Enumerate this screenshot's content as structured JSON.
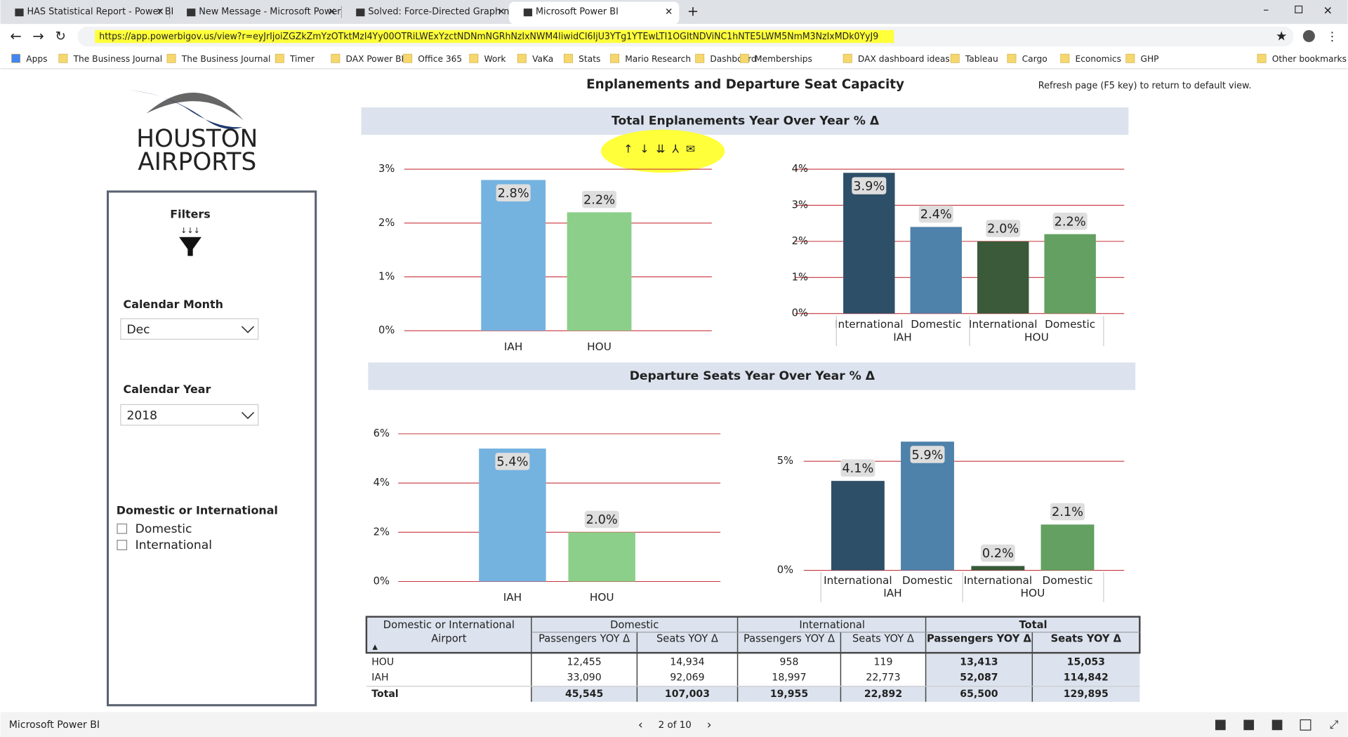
{
  "browser": {
    "tabs": [
      "HAS Statistical Report - Power BI",
      "New Message - Microsoft Power",
      "Solved: Force-Directed Graph no",
      "Microsoft Power BI"
    ],
    "url": "https://app.powerbigov.us/view?r=eyJrIjoiZGZkZmYzOTktMzI4Yy00OTRiLWExYzctNDNmNGRhNzIxNWM4IiwidCI6IjU3YTg1YTEwLTI1OGItNDViNC1hNTE5LWM5NmM3NzIxMDk0YyJ9",
    "bookmarks": [
      "Apps",
      "The Business Journal",
      "The Business Journal",
      "Timer",
      "DAX Power BI",
      "Office 365",
      "Work",
      "VaKa",
      "Stats",
      "Mario Research",
      "Dashboard",
      "Memberships",
      "DAX dashboard ideas",
      "Tableau",
      "Cargo",
      "Economics",
      "GHP",
      "Other bookmarks"
    ]
  },
  "report": {
    "title": "Enplanements and Departure Seat Capacity",
    "note": "Refresh page (F5 key) to return to default view.",
    "logo": [
      "HOUSTON",
      "AIRPORTS"
    ],
    "filters": {
      "title": "Filters",
      "month_label": "Calendar Month",
      "month": "Dec",
      "year_label": "Calendar Year",
      "year": "2018",
      "type_label": "Domestic or International",
      "options": [
        "Domestic",
        "International"
      ]
    },
    "sections": [
      "Total Enplanements Year Over Year % Δ",
      "Departure Seats Year Over Year % Δ"
    ]
  },
  "chart_data": [
    {
      "type": "bar",
      "categories": [
        "IAH",
        "HOU"
      ],
      "values": [
        2.8,
        2.2
      ],
      "value_labels": [
        "2.8%",
        "2.2%"
      ],
      "colors": [
        "#74b2e0",
        "#8ccf8a"
      ],
      "ylim": [
        0,
        3
      ],
      "yticks": [
        {
          "value": 0,
          "label": "0%"
        },
        {
          "value": 1,
          "label": "1%"
        },
        {
          "value": 2,
          "label": "2%"
        },
        {
          "value": 3,
          "label": "3%"
        }
      ],
      "grid": true
    },
    {
      "type": "bar",
      "categories": [
        "International",
        "Domestic",
        "International",
        "Domestic"
      ],
      "groups": [
        "IAH",
        "HOU"
      ],
      "values": [
        3.9,
        2.4,
        2.0,
        2.2
      ],
      "value_labels": [
        "3.9%",
        "2.4%",
        "2.0%",
        "2.2%"
      ],
      "colors": [
        "#2e4f68",
        "#4f82aa",
        "#3a5a3a",
        "#63a062"
      ],
      "ylim": [
        0,
        4
      ],
      "yticks": [
        {
          "value": 0,
          "label": "0%"
        },
        {
          "value": 1,
          "label": "1%"
        },
        {
          "value": 2,
          "label": "2%"
        },
        {
          "value": 3,
          "label": "3%"
        },
        {
          "value": 4,
          "label": "4%"
        }
      ],
      "grid": true
    },
    {
      "type": "bar",
      "categories": [
        "IAH",
        "HOU"
      ],
      "values": [
        5.4,
        2.0
      ],
      "value_labels": [
        "5.4%",
        "2.0%"
      ],
      "colors": [
        "#74b2e0",
        "#8ccf8a"
      ],
      "ylim": [
        0,
        6
      ],
      "yticks": [
        {
          "value": 0,
          "label": "0%"
        },
        {
          "value": 2,
          "label": "2%"
        },
        {
          "value": 4,
          "label": "4%"
        },
        {
          "value": 6,
          "label": "6%"
        }
      ],
      "grid": true
    },
    {
      "type": "bar",
      "categories": [
        "International",
        "Domestic",
        "International",
        "Domestic"
      ],
      "groups": [
        "IAH",
        "HOU"
      ],
      "values": [
        4.1,
        5.9,
        0.2,
        2.1
      ],
      "value_labels": [
        "4.1%",
        "5.9%",
        "0.2%",
        "2.1%"
      ],
      "colors": [
        "#2e4f68",
        "#4f82aa",
        "#3a5a3a",
        "#63a062"
      ],
      "ylim": [
        0,
        6
      ],
      "yticks": [
        {
          "value": 0,
          "label": "0%"
        },
        {
          "value": 5,
          "label": "5%"
        }
      ],
      "grid": true
    }
  ],
  "table": {
    "header_top": [
      "Domestic or International",
      "Domestic",
      "International",
      "Total"
    ],
    "header": [
      "Airport",
      "Passengers YOY Δ",
      "Seats YOY Δ",
      "Passengers YOY Δ",
      "Seats YOY Δ",
      "Passengers YOY Δ",
      "Seats YOY Δ"
    ],
    "rows": [
      [
        "HOU",
        "12,455",
        "14,934",
        "958",
        "119",
        "13,413",
        "15,053"
      ],
      [
        "IAH",
        "33,090",
        "92,069",
        "18,997",
        "22,773",
        "52,087",
        "114,842"
      ],
      [
        "Total",
        "45,545",
        "107,003",
        "19,955",
        "22,892",
        "65,500",
        "129,895"
      ]
    ]
  },
  "footer": {
    "app": "Microsoft Power BI",
    "page": "2 of 10"
  }
}
